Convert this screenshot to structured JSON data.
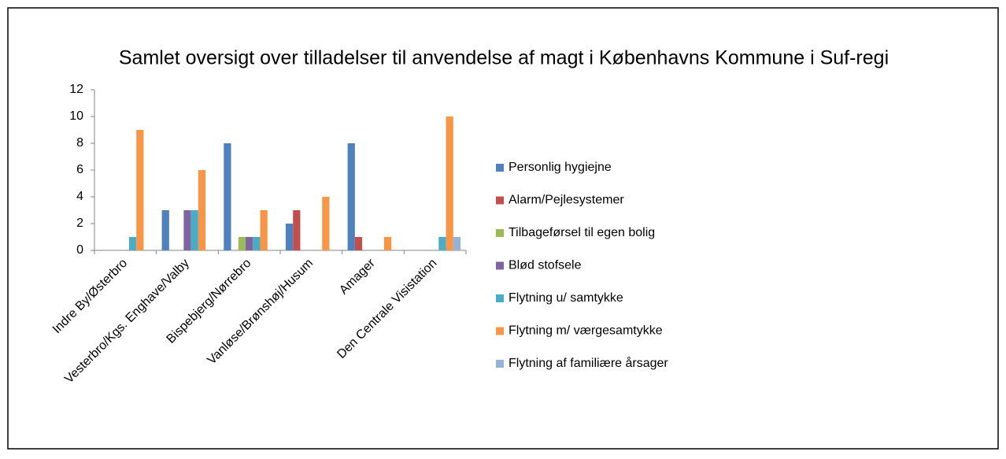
{
  "chart_data": {
    "type": "bar",
    "title": "Samlet oversigt over tilladelser til anvendelse af magt i Københavns Kommune i Suf-regi",
    "categories": [
      "Indre By/Østerbro",
      "Vesterbro/Kgs. Enghave/Valby",
      "Bispebjerg/Nørrebro",
      "Vanløse/Brønshøj/Husum",
      "Amager",
      "Den Centrale Visistation"
    ],
    "series": [
      {
        "name": "Personlig hygiejne",
        "color": "#4F81BD",
        "values": [
          0,
          3,
          8,
          2,
          8,
          0
        ]
      },
      {
        "name": "Alarm/Pejlesystemer",
        "color": "#C0504D",
        "values": [
          0,
          0,
          0,
          3,
          1,
          0
        ]
      },
      {
        "name": "Tilbageførsel til egen bolig",
        "color": "#9BBB59",
        "values": [
          0,
          0,
          1,
          0,
          0,
          0
        ]
      },
      {
        "name": "Blød stofsele",
        "color": "#8064A2",
        "values": [
          0,
          3,
          1,
          0,
          0,
          0
        ]
      },
      {
        "name": "Flytning u/ samtykke",
        "color": "#4BACC6",
        "values": [
          1,
          3,
          1,
          0,
          0,
          1
        ]
      },
      {
        "name": "Flytning m/ værgesamtykke",
        "color": "#F79646",
        "values": [
          9,
          6,
          3,
          4,
          1,
          10
        ]
      },
      {
        "name": "Flytning af familiære årsager",
        "color": "#95B3D7",
        "values": [
          0,
          0,
          0,
          0,
          0,
          1
        ]
      }
    ],
    "ylim": [
      0,
      12
    ],
    "yticks": [
      0,
      2,
      4,
      6,
      8,
      10,
      12
    ],
    "legend": "right"
  }
}
